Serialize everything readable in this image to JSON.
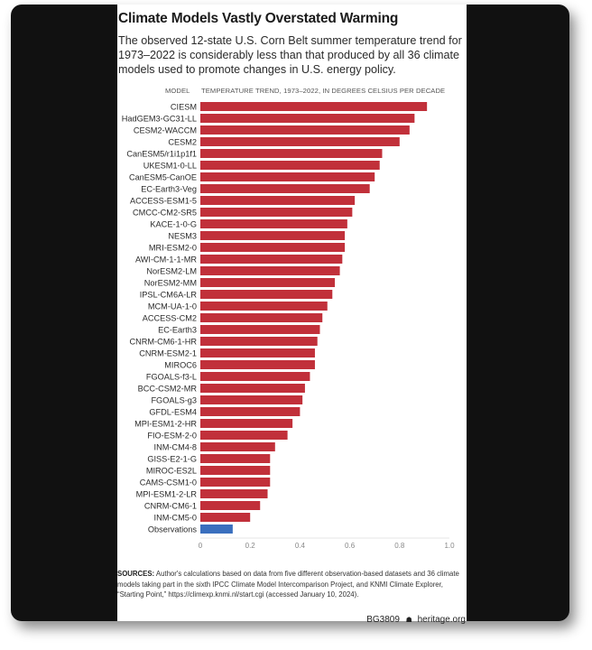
{
  "header": {
    "title": "Climate Models Vastly Overstated Warming",
    "subtitle": "The observed 12-state U.S. Corn Belt summer temperature trend for 1973–2022 is considerably less than that produced by all 36 climate models used to promote changes in U.S. energy policy.",
    "col_model": "MODEL",
    "col_trend": "TEMPERATURE TREND, 1973–2022, IN DEGREES CELSIUS PER DECADE"
  },
  "chart_data": {
    "type": "bar",
    "orientation": "horizontal",
    "title": "Climate Models Vastly Overstated Warming",
    "xlabel": "TEMPERATURE TREND, 1973–2022, IN DEGREES CELSIUS PER DECADE",
    "ylabel": "MODEL",
    "xlim": [
      0,
      1.0
    ],
    "xticks": [
      0,
      0.2,
      0.4,
      0.6,
      0.8,
      1.0
    ],
    "xtick_labels": [
      "0",
      "0.2",
      "0.4",
      "0.6",
      "0.8",
      "1.0"
    ],
    "grid": false,
    "colors": {
      "model": "#C1303A",
      "observations": "#3A6FBE"
    },
    "categories": [
      "CIESM",
      "HadGEM3-GC31-LL",
      "CESM2-WACCM",
      "CESM2",
      "CanESM5/r1i1p1f1",
      "UKESM1-0-LL",
      "CanESM5-CanOE",
      "EC-Earth3-Veg",
      "ACCESS-ESM1-5",
      "CMCC-CM2-SR5",
      "KACE-1-0-G",
      "NESM3",
      "MRI-ESM2-0",
      "AWI-CM-1-1-MR",
      "NorESM2-LM",
      "NorESM2-MM",
      "IPSL-CM6A-LR",
      "MCM-UA-1-0",
      "ACCESS-CM2",
      "EC-Earth3",
      "CNRM-CM6-1-HR",
      "CNRM-ESM2-1",
      "MIROC6",
      "FGOALS-f3-L",
      "BCC-CSM2-MR",
      "FGOALS-g3",
      "GFDL-ESM4",
      "MPI-ESM1-2-HR",
      "FIO-ESM-2-0",
      "INM-CM4-8",
      "GISS-E2-1-G",
      "MIROC-ES2L",
      "CAMS-CSM1-0",
      "MPI-ESM1-2-LR",
      "CNRM-CM6-1",
      "INM-CM5-0",
      "Observations"
    ],
    "values": [
      0.91,
      0.86,
      0.84,
      0.8,
      0.73,
      0.72,
      0.7,
      0.68,
      0.62,
      0.61,
      0.59,
      0.58,
      0.58,
      0.57,
      0.56,
      0.54,
      0.53,
      0.51,
      0.49,
      0.48,
      0.47,
      0.46,
      0.46,
      0.44,
      0.42,
      0.41,
      0.4,
      0.37,
      0.35,
      0.3,
      0.28,
      0.28,
      0.28,
      0.27,
      0.24,
      0.2,
      0.13
    ],
    "series_type": [
      "model",
      "model",
      "model",
      "model",
      "model",
      "model",
      "model",
      "model",
      "model",
      "model",
      "model",
      "model",
      "model",
      "model",
      "model",
      "model",
      "model",
      "model",
      "model",
      "model",
      "model",
      "model",
      "model",
      "model",
      "model",
      "model",
      "model",
      "model",
      "model",
      "model",
      "model",
      "model",
      "model",
      "model",
      "model",
      "model",
      "observations"
    ]
  },
  "sources": {
    "label": "SOURCES:",
    "text": " Author's calculations based on data from five different observation-based datasets and 36 climate models taking part in the sixth IPCC Climate Model Intercomparison Project, and KNMI Climate Explorer, “Starting Point,” https://climexp.knmi.nl/start.cgi (accessed January 10, 2024)."
  },
  "footer": {
    "code": "BG3809",
    "logo_icon": "heritage-bell-icon",
    "logo_glyph": "☗",
    "site": "heritage.org"
  }
}
